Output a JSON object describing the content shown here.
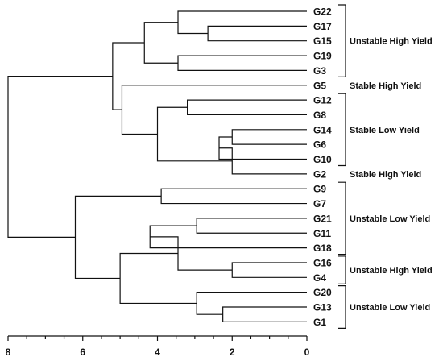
{
  "dendrogram": {
    "leaves": [
      "G22",
      "G17",
      "G15",
      "G19",
      "G3",
      "G5",
      "G12",
      "G8",
      "G14",
      "G6",
      "G10",
      "G2",
      "G9",
      "G7",
      "G21",
      "G11",
      "G18",
      "G16",
      "G4",
      "G20",
      "G13",
      "G1"
    ],
    "merges": [
      {
        "a": "G17",
        "b": "G15",
        "height": 2.65,
        "id": "n1"
      },
      {
        "a": "G22",
        "b": "n1",
        "height": 3.45,
        "id": "n2"
      },
      {
        "a": "G19",
        "b": "G3",
        "height": 3.45,
        "id": "n3"
      },
      {
        "a": "n2",
        "b": "n3",
        "height": 4.35,
        "id": "n4"
      },
      {
        "a": "G12",
        "b": "G8",
        "height": 3.2,
        "id": "n5"
      },
      {
        "a": "G14",
        "b": "G6",
        "height": 2.0,
        "id": "n6"
      },
      {
        "a": "n6",
        "b": "G10",
        "height": 2.35,
        "id": "n7"
      },
      {
        "a": "n7",
        "b": "G2",
        "height": 2.0,
        "id": "n8"
      },
      {
        "a": "n5",
        "b": "n8",
        "height": 4.0,
        "id": "n9"
      },
      {
        "a": "G5",
        "b": "n9",
        "height": 4.95,
        "id": "n10"
      },
      {
        "a": "n4",
        "b": "n10",
        "height": 5.2,
        "id": "n11"
      },
      {
        "a": "G9",
        "b": "G7",
        "height": 3.9,
        "id": "n12"
      },
      {
        "a": "G21",
        "b": "G11",
        "height": 2.95,
        "id": "n13"
      },
      {
        "a": "n13",
        "b": "G18",
        "height": 4.2,
        "id": "n14"
      },
      {
        "a": "G16",
        "b": "G4",
        "height": 2.0,
        "id": "n15"
      },
      {
        "a": "n14",
        "b": "n15",
        "height": 3.45,
        "id": "n16"
      },
      {
        "a": "G13",
        "b": "G1",
        "height": 2.25,
        "id": "n17"
      },
      {
        "a": "G20",
        "b": "n17",
        "height": 2.95,
        "id": "n18"
      },
      {
        "a": "n16",
        "b": "n18",
        "height": 5.0,
        "id": "n19"
      },
      {
        "a": "n12",
        "b": "n19",
        "height": 6.2,
        "id": "n20"
      },
      {
        "a": "n11",
        "b": "n20",
        "height": 8.0,
        "id": "n21"
      }
    ]
  },
  "groups": [
    {
      "label": "Unstable High Yield",
      "start": "G22",
      "end": "G3",
      "bracket": true
    },
    {
      "label": "Stable High Yield",
      "start": "G5",
      "end": "G5",
      "bracket": false
    },
    {
      "label": "Stable Low Yield",
      "start": "G12",
      "end": "G10",
      "bracket": true
    },
    {
      "label": "Stable High Yield",
      "start": "G2",
      "end": "G2",
      "bracket": false
    },
    {
      "label": "Unstable Low Yield",
      "start": "G9",
      "end": "G18",
      "bracket": true
    },
    {
      "label": "Unstable High Yield",
      "start": "G16",
      "end": "G4",
      "bracket": true
    },
    {
      "label": "Unstable Low Yield",
      "start": "G20",
      "end": "G1",
      "bracket": true
    }
  ],
  "axis": {
    "ticks": [
      8,
      6,
      4,
      2,
      0
    ],
    "tick_labels": [
      "8",
      "6",
      "4",
      "2",
      "0"
    ],
    "range": [
      8,
      0
    ],
    "minor_tick_step": 0.5
  }
}
